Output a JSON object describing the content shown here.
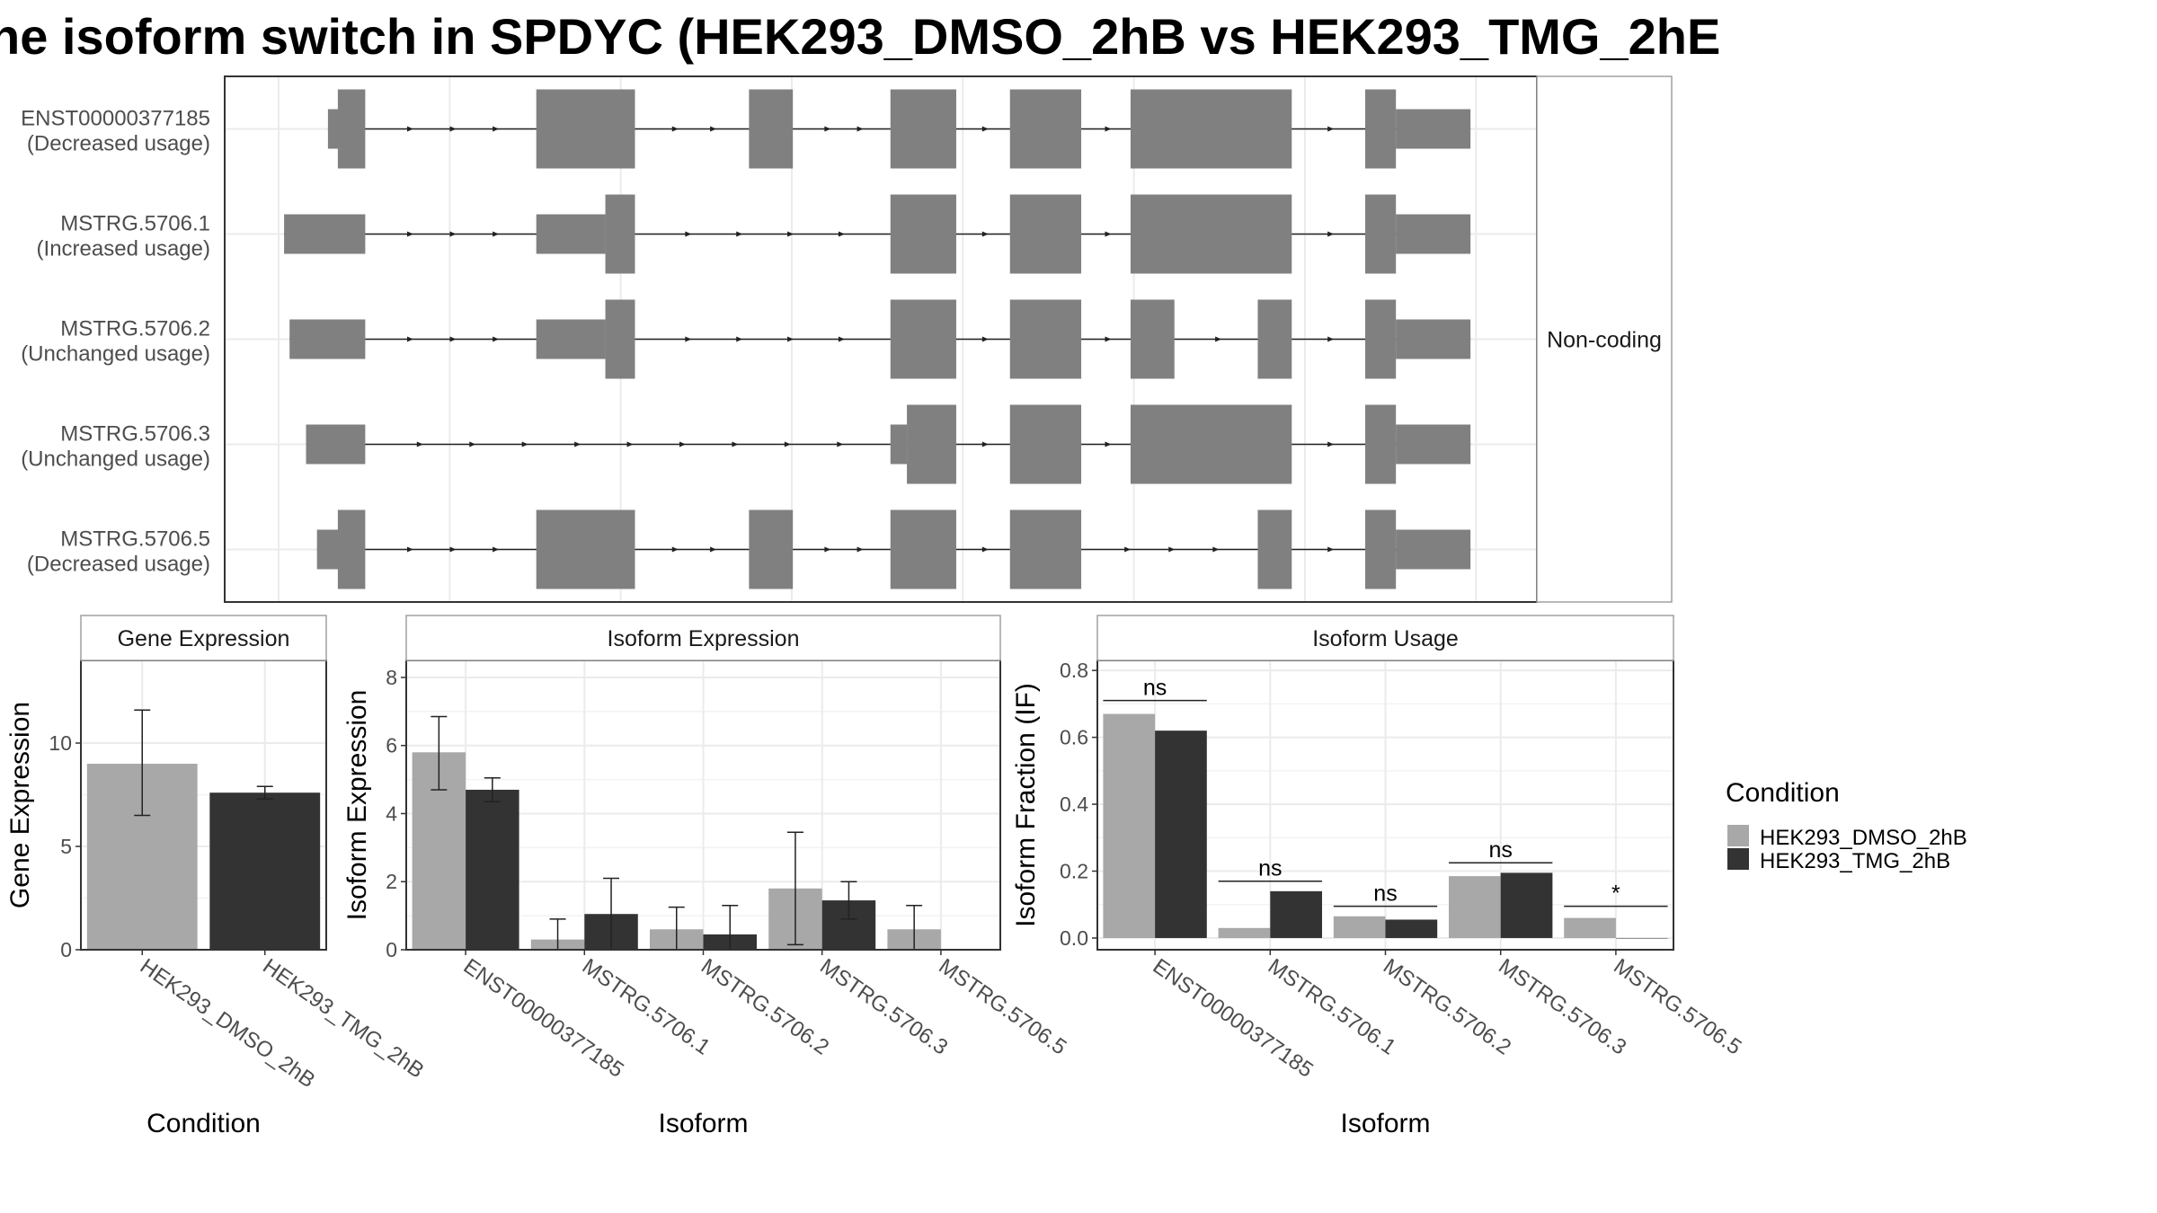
{
  "title": "he isoform switch in SPDYC (HEK293_DMSO_2hB vs HEK293_TMG_2hE",
  "colors": {
    "dmso": "#a8a8a8",
    "tmg": "#333333",
    "exon": "#808080",
    "grid": "#ebebeb",
    "panel_border": "#333333",
    "strip_fill": "#ffffff"
  },
  "chart_data": [
    {
      "type": "gene-structure",
      "panel_label": "Non-coding",
      "isoforms": [
        {
          "id": "ENST00000377185",
          "status": "(Decreased usage)",
          "exons": [
            {
              "start": 0.045,
              "end": 0.07,
              "kind": "utr"
            },
            {
              "start": 0.054,
              "end": 0.079,
              "kind": "cds"
            },
            {
              "start": 0.235,
              "end": 0.325,
              "kind": "cds"
            },
            {
              "start": 0.429,
              "end": 0.469,
              "kind": "cds"
            },
            {
              "start": 0.558,
              "end": 0.618,
              "kind": "cds"
            },
            {
              "start": 0.667,
              "end": 0.732,
              "kind": "cds"
            },
            {
              "start": 0.777,
              "end": 0.924,
              "kind": "cds"
            },
            {
              "start": 0.991,
              "end": 1.019,
              "kind": "cds"
            },
            {
              "start": 1.019,
              "end": 1.087,
              "kind": "utr"
            }
          ]
        },
        {
          "id": "MSTRG.5706.1",
          "status": "(Increased usage)",
          "exons": [
            {
              "start": 0.005,
              "end": 0.079,
              "kind": "utr"
            },
            {
              "start": 0.235,
              "end": 0.298,
              "kind": "utr"
            },
            {
              "start": 0.298,
              "end": 0.325,
              "kind": "cds"
            },
            {
              "start": 0.558,
              "end": 0.618,
              "kind": "cds"
            },
            {
              "start": 0.667,
              "end": 0.732,
              "kind": "cds"
            },
            {
              "start": 0.777,
              "end": 0.924,
              "kind": "cds"
            },
            {
              "start": 0.991,
              "end": 1.019,
              "kind": "cds"
            },
            {
              "start": 1.019,
              "end": 1.087,
              "kind": "utr"
            }
          ]
        },
        {
          "id": "MSTRG.5706.2",
          "status": "(Unchanged usage)",
          "exons": [
            {
              "start": 0.01,
              "end": 0.079,
              "kind": "utr"
            },
            {
              "start": 0.235,
              "end": 0.298,
              "kind": "utr"
            },
            {
              "start": 0.298,
              "end": 0.325,
              "kind": "cds"
            },
            {
              "start": 0.558,
              "end": 0.618,
              "kind": "cds"
            },
            {
              "start": 0.667,
              "end": 0.732,
              "kind": "cds"
            },
            {
              "start": 0.777,
              "end": 0.817,
              "kind": "cds"
            },
            {
              "start": 0.893,
              "end": 0.924,
              "kind": "cds"
            },
            {
              "start": 0.991,
              "end": 1.019,
              "kind": "cds"
            },
            {
              "start": 1.019,
              "end": 1.087,
              "kind": "utr"
            }
          ]
        },
        {
          "id": "MSTRG.5706.3",
          "status": "(Unchanged usage)",
          "exons": [
            {
              "start": 0.025,
              "end": 0.079,
              "kind": "utr"
            },
            {
              "start": 0.558,
              "end": 0.573,
              "kind": "utr"
            },
            {
              "start": 0.573,
              "end": 0.618,
              "kind": "cds"
            },
            {
              "start": 0.667,
              "end": 0.732,
              "kind": "cds"
            },
            {
              "start": 0.777,
              "end": 0.924,
              "kind": "cds"
            },
            {
              "start": 0.991,
              "end": 1.019,
              "kind": "cds"
            },
            {
              "start": 1.019,
              "end": 1.087,
              "kind": "utr"
            }
          ]
        },
        {
          "id": "MSTRG.5706.5",
          "status": "(Decreased usage)",
          "exons": [
            {
              "start": 0.035,
              "end": 0.07,
              "kind": "utr"
            },
            {
              "start": 0.054,
              "end": 0.079,
              "kind": "cds"
            },
            {
              "start": 0.235,
              "end": 0.325,
              "kind": "cds"
            },
            {
              "start": 0.429,
              "end": 0.469,
              "kind": "cds"
            },
            {
              "start": 0.558,
              "end": 0.618,
              "kind": "cds"
            },
            {
              "start": 0.667,
              "end": 0.732,
              "kind": "cds"
            },
            {
              "start": 0.893,
              "end": 0.924,
              "kind": "cds"
            },
            {
              "start": 0.991,
              "end": 1.019,
              "kind": "cds"
            },
            {
              "start": 1.019,
              "end": 1.087,
              "kind": "utr"
            }
          ]
        }
      ]
    },
    {
      "type": "bar",
      "strip_label": "Gene Expression",
      "xlabel": "Condition",
      "ylabel": "Gene Expression",
      "ylim": [
        0,
        14
      ],
      "yticks": [
        0,
        5,
        10
      ],
      "categories": [
        "HEK293_DMSO_2hB",
        "HEK293_TMG_2hB"
      ],
      "series": [
        {
          "values": [
            9.0,
            7.6
          ],
          "err_low": [
            6.5,
            7.3
          ],
          "err_high": [
            11.6,
            7.9
          ]
        }
      ]
    },
    {
      "type": "bar",
      "strip_label": "Isoform Expression",
      "xlabel": "Isoform",
      "ylabel": "Isoform Expression",
      "ylim": [
        0,
        8.5
      ],
      "yticks": [
        0,
        2,
        4,
        6,
        8
      ],
      "categories": [
        "ENST00000377185",
        "MSTRG.5706.1",
        "MSTRG.5706.2",
        "MSTRG.5706.3",
        "MSTRG.5706.5"
      ],
      "series": [
        {
          "name": "HEK293_DMSO_2hB",
          "values": [
            5.8,
            0.3,
            0.6,
            1.8,
            0.6
          ],
          "err_low": [
            4.7,
            0.0,
            0.0,
            0.15,
            0.0
          ],
          "err_high": [
            6.85,
            0.9,
            1.25,
            3.45,
            1.3
          ]
        },
        {
          "name": "HEK293_TMG_2hB",
          "values": [
            4.7,
            1.05,
            0.45,
            1.45,
            0.0
          ],
          "err_low": [
            4.35,
            0.0,
            0.0,
            0.9,
            0.0
          ],
          "err_high": [
            5.05,
            2.1,
            1.3,
            2.0,
            0.0
          ]
        }
      ]
    },
    {
      "type": "bar",
      "strip_label": "Isoform Usage",
      "xlabel": "Isoform",
      "ylabel": "Isoform Fraction (IF)",
      "ylim": [
        -0.035,
        0.83
      ],
      "yticks": [
        0.0,
        0.2,
        0.4,
        0.6,
        0.8
      ],
      "ytick_labels": [
        "0.0",
        "0.2",
        "0.4",
        "0.6",
        "0.8"
      ],
      "categories": [
        "ENST00000377185",
        "MSTRG.5706.1",
        "MSTRG.5706.2",
        "MSTRG.5706.3",
        "MSTRG.5706.5"
      ],
      "series": [
        {
          "name": "HEK293_DMSO_2hB",
          "values": [
            0.67,
            0.03,
            0.065,
            0.185,
            0.06
          ]
        },
        {
          "name": "HEK293_TMG_2hB",
          "values": [
            0.62,
            0.14,
            0.055,
            0.195,
            0.0
          ]
        }
      ],
      "annotations": [
        {
          "category": "ENST00000377185",
          "label": "ns",
          "y": 0.71
        },
        {
          "category": "MSTRG.5706.1",
          "label": "ns",
          "y": 0.17
        },
        {
          "category": "MSTRG.5706.2",
          "label": "ns",
          "y": 0.095
        },
        {
          "category": "MSTRG.5706.3",
          "label": "ns",
          "y": 0.225
        },
        {
          "category": "MSTRG.5706.5",
          "label": "*",
          "y": 0.095
        }
      ]
    }
  ],
  "legend": {
    "title": "Condition",
    "placement": "right",
    "items": [
      "HEK293_DMSO_2hB",
      "HEK293_TMG_2hB"
    ]
  }
}
